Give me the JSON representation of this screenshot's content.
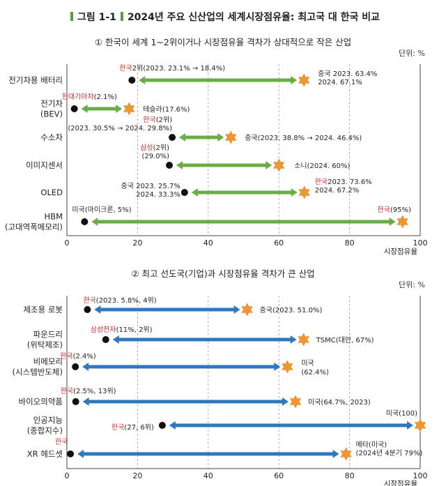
{
  "figure": {
    "label": "그림 1-1",
    "title": "2024년 주요 신산업의 세계시장점유율: 최고국 대 한국 비교"
  },
  "colors": {
    "green": "#6aac45",
    "blue": "#2f78bf",
    "star": "#f0962f",
    "red": "#d42a2a",
    "dot": "#111111",
    "grid": "#9a9a9a"
  },
  "chart_data": [
    {
      "type": "dumbbell",
      "title": "① 한국이 세계 1~2위이거나 시장점유율 격차가 상대적으로 작은 산업",
      "unit_label": "단위: %",
      "xlabel": "시장점유율",
      "xlim": [
        0,
        100
      ],
      "xticks": [
        "0",
        "20",
        "40",
        "60",
        "80",
        "100"
      ],
      "legend": "none",
      "rows": [
        {
          "category": "전기차용 배터리",
          "korea": 18.4,
          "top": 67.1,
          "korea_label": [
            "2위(2023. 23.1% → 18.4%)"
          ],
          "korea_red_prefix": "한국",
          "top_label": [
            "중국  2023. 63.4%",
            "2024. 67.1%"
          ]
        },
        {
          "category": "전기차\n(BEV)",
          "korea": 2.1,
          "top": 17.6,
          "korea_label": [
            "(2.1%)"
          ],
          "korea_red_prefix": "현대기아차",
          "top_label": [
            "테슬라(17.6%)"
          ]
        },
        {
          "category": "수소차",
          "korea": 29.8,
          "top": 46.4,
          "korea_label": [
            "(2위)",
            "(2023.  30.5% → 2024. 29.8%)"
          ],
          "korea_red_prefix": "한국",
          "top_label": [
            "중국(2023. 38.8% → 2024. 46.4%)"
          ]
        },
        {
          "category": "이미지센서",
          "korea": 29.0,
          "top": 60.0,
          "korea_label": [
            "(2위)",
            "(29.0%)"
          ],
          "korea_red_prefix": "삼성",
          "top_label": [
            "소니(2024. 60%)"
          ]
        },
        {
          "category": "OLED",
          "korea": 33.3,
          "top": 67.2,
          "korea_label": [
            "중국  2023. 25.7%",
            "2024. 33.3%"
          ],
          "korea_red_prefix": "",
          "top_label": [
            "2023. 73.6%",
            "2024. 67.2%"
          ],
          "top_red_prefix": "한국"
        },
        {
          "category": "HBM\n(고대역폭메모리)",
          "korea": 5.0,
          "top": 95.0,
          "korea_label": [
            "미국(마이크론, 5%)"
          ],
          "korea_red_prefix": "",
          "top_label": [
            "(95%)"
          ],
          "top_red_prefix": "한국"
        }
      ]
    },
    {
      "type": "dumbbell",
      "title": "② 최고 선도국(기업)과 시장점유율 격차가 큰 산업",
      "unit_label": "단위: %",
      "xlabel": "시장점유율",
      "xlim": [
        0,
        100
      ],
      "xticks": [
        "0",
        "20",
        "40",
        "60",
        "80",
        "100"
      ],
      "legend": "none",
      "rows": [
        {
          "category": "제조용 로봇",
          "korea": 5.8,
          "top": 51.0,
          "korea_label": [
            "(2023. 5.8%, 4위)"
          ],
          "korea_red_prefix": "한국",
          "top_label": [
            "중국(2023. 51.0%)"
          ]
        },
        {
          "category": "파운드리\n(위탁제조)",
          "korea": 11.0,
          "top": 67.0,
          "korea_label": [
            "(11%, 2위)"
          ],
          "korea_red_prefix": "삼성전자",
          "top_label": [
            "TSMC(대만, 67%)"
          ]
        },
        {
          "category": "비메모리\n(시스템반도체)",
          "korea": 2.4,
          "top": 62.4,
          "korea_label": [
            "(2.4%)"
          ],
          "korea_red_prefix": "한국",
          "top_label": [
            "미국",
            "(62.4%)"
          ]
        },
        {
          "category": "바이오의약품",
          "korea": 2.5,
          "top": 64.7,
          "korea_label": [
            "(2.5%, 13위)"
          ],
          "korea_red_prefix": "한국",
          "top_label": [
            "미국(64.7%, 2023)"
          ]
        },
        {
          "category": "인공지능\n(종합지수)",
          "korea": 27.0,
          "top": 100.0,
          "korea_label": [
            "(27, 6위)"
          ],
          "korea_red_prefix": "한국",
          "top_label": [
            "미국(100)"
          ]
        },
        {
          "category": "XR 헤드셋",
          "korea": 1.0,
          "top": 79.0,
          "korea_label": [
            ""
          ],
          "korea_red_prefix": "한국",
          "top_label": [
            "메타(미국)",
            "(2024년 4분기 79%)"
          ]
        }
      ]
    }
  ]
}
